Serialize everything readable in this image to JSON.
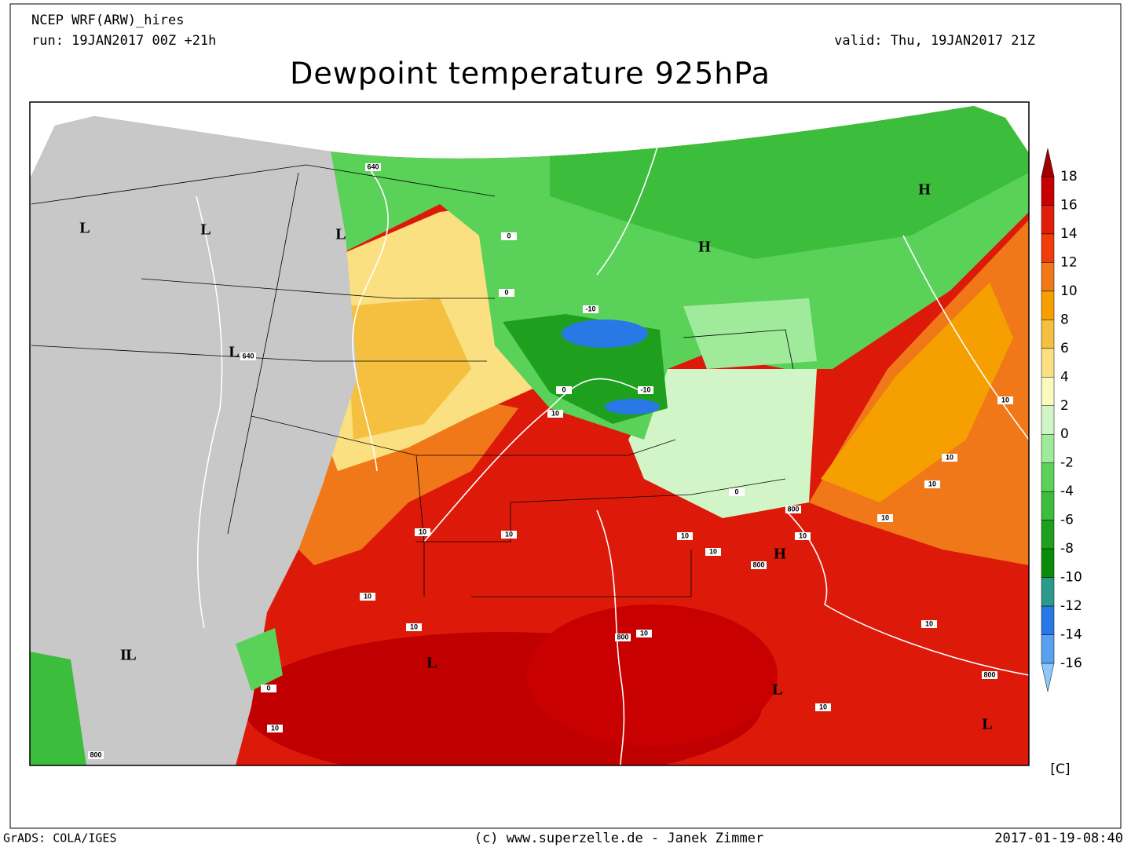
{
  "header": {
    "model": "NCEP WRF(ARW)_hires",
    "run": "run: 19JAN2017 00Z +21h",
    "valid": "valid: Thu, 19JAN2017 21Z",
    "title": "Dewpoint temperature 925hPa"
  },
  "colorbar": {
    "levels": [
      18,
      16,
      14,
      12,
      10,
      8,
      6,
      4,
      2,
      0,
      -2,
      -4,
      -6,
      -8,
      -10,
      -12,
      -14,
      -16
    ],
    "colors": [
      "#a00000",
      "#c80000",
      "#e01e0a",
      "#f03c0a",
      "#f07818",
      "#f5a000",
      "#f5c040",
      "#fae080",
      "#fafac0",
      "#d2f5c8",
      "#a0eb9b",
      "#5ad25a",
      "#3cbe3c",
      "#1ea01e",
      "#0a8c0a",
      "#2a9a8a",
      "#2878e6",
      "#5aa0f0",
      "#8cc8fa"
    ],
    "unit": "[C]"
  },
  "map_labels": {
    "pressure_centers": [
      "L",
      "L",
      "L",
      "L",
      "H",
      "H",
      "H",
      "L",
      "L",
      "L",
      "L",
      "L"
    ],
    "contour_labels": [
      640,
      640,
      0,
      0,
      -10,
      -10,
      0,
      10,
      10,
      10,
      10,
      0,
      800,
      10,
      10,
      800,
      10,
      10,
      10,
      10,
      10,
      10,
      10,
      10,
      800,
      800,
      10,
      10,
      0,
      800
    ]
  },
  "footer": {
    "software": "GrADS: COLA/IGES",
    "credit": "(c) www.superzelle.de - Janek Zimmer",
    "timestamp": "2017-01-19-08:40"
  }
}
